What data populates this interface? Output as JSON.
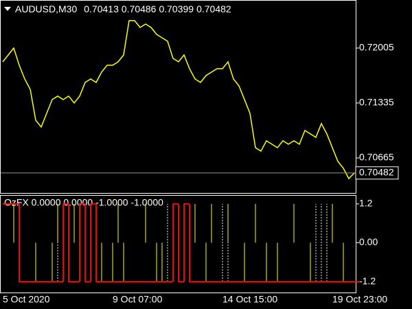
{
  "chart_data": [
    {
      "type": "line",
      "title": "AUDUSD,M30",
      "ohlc": [
        0.70413,
        0.70486,
        0.70399,
        0.70482
      ],
      "color": "#ffff00",
      "values": [
        0.71837,
        0.71921,
        0.72005,
        0.71795,
        0.71628,
        0.71502,
        0.71125,
        0.71042,
        0.71209,
        0.71377,
        0.71419,
        0.71377,
        0.71419,
        0.71335,
        0.71419,
        0.71586,
        0.71628,
        0.71586,
        0.71712,
        0.71795,
        0.71795,
        0.71837,
        0.71921,
        0.7234,
        0.7234,
        0.72256,
        0.72298,
        0.72256,
        0.72172,
        0.7213,
        0.72089,
        0.71879,
        0.71837,
        0.71921,
        0.71754,
        0.71628,
        0.71586,
        0.7167,
        0.71712,
        0.71754,
        0.71754,
        0.71837,
        0.71628,
        0.71544,
        0.71377,
        0.71209,
        0.7079,
        0.70748,
        0.70874,
        0.70832,
        0.7079,
        0.70874,
        0.70832,
        0.70874,
        0.70832,
        0.71,
        0.70958,
        0.70916,
        0.71083,
        0.70958,
        0.7079,
        0.70623,
        0.70539,
        0.70413,
        0.70482
      ],
      "ylim": [
        0.70246,
        0.72591
      ],
      "yticks": [
        0.72005,
        0.71335,
        0.70665
      ]
    },
    {
      "type": "indicator",
      "title": "OzFX 0.0000 0.0000 -1.0000 -1.0000",
      "categories": [
        "5 Oct 2020",
        null,
        null,
        null,
        null,
        null,
        null,
        null,
        null,
        null,
        null,
        null,
        null,
        null,
        null,
        null,
        null,
        null,
        null,
        null,
        "9 Oct 07:00",
        null,
        null,
        null,
        null,
        null,
        null,
        null,
        null,
        null,
        null,
        null,
        null,
        null,
        null,
        null,
        null,
        null,
        null,
        null,
        "14 Oct 15:00",
        null,
        null,
        null,
        null,
        null,
        null,
        null,
        null,
        null,
        null,
        null,
        null,
        null,
        null,
        null,
        null,
        null,
        null,
        null,
        "19 Oct 23:00",
        null,
        null,
        null,
        null
      ],
      "series": [
        {
          "color": "#ff0000",
          "values": [
            1.2,
            1.2,
            1.2,
            -1.2,
            -1.2,
            -1.2,
            -1.2,
            -1.2,
            -1.2,
            -1.2,
            -1.2,
            1.2,
            -1.2,
            -1.2,
            1.2,
            -1.2,
            1.2,
            -1.2,
            -1.2,
            -1.2,
            -1.2,
            -1.2,
            -1.2,
            -1.2,
            -1.2,
            -1.2,
            -1.2,
            -1.2,
            -1.2,
            -1.2,
            -1.2,
            1.2,
            -1.2,
            1.2,
            -1.2,
            -1.2,
            -1.2,
            -1.2,
            -1.2,
            -1.2,
            -1.2,
            -1.2,
            -1.2,
            -1.2,
            -1.2,
            -1.2,
            -1.2,
            -1.2,
            -1.2,
            -1.2,
            -1.2,
            -1.2,
            -1.2,
            -1.2,
            -1.2,
            -1.2,
            -1.2,
            -1.2,
            -1.2,
            -1.2,
            -1.2,
            -1.2,
            -1.2,
            -1.2,
            -1.2
          ]
        },
        {
          "color": "#ffff00",
          "values": [
            null,
            null,
            1.2,
            null,
            null,
            null,
            -1.2,
            null,
            null,
            -1.2,
            1.2,
            null,
            null,
            1.2,
            null,
            null,
            null,
            null,
            -1.2,
            null,
            -1.2,
            1.2,
            -1.2,
            null,
            null,
            null,
            1.2,
            null,
            -1.2,
            -1.2,
            null,
            null,
            null,
            null,
            null,
            1.2,
            null,
            -1.2,
            1.2,
            null,
            null,
            1.2,
            null,
            null,
            -1.2,
            null,
            1.2,
            null,
            -1.2,
            null,
            -1.2,
            null,
            null,
            1.2,
            null,
            null,
            -1.2,
            null,
            null,
            null,
            1.2,
            null,
            -1.2,
            null,
            null
          ]
        },
        {
          "color": "#ffffff",
          "values": [
            null,
            null,
            null,
            null,
            null,
            null,
            null,
            null,
            null,
            null,
            1.2,
            1.2,
            1.2,
            null,
            null,
            null,
            null,
            null,
            null,
            null,
            null,
            null,
            null,
            null,
            null,
            null,
            null,
            null,
            null,
            null,
            1.2,
            1.2,
            null,
            null,
            null,
            null,
            null,
            null,
            null,
            null,
            1.2,
            1.2,
            null,
            null,
            null,
            null,
            null,
            null,
            null,
            null,
            null,
            null,
            null,
            null,
            null,
            null,
            null,
            1.2,
            1.2,
            1.2,
            null,
            null,
            null,
            null,
            null
          ]
        }
      ],
      "ylim": [
        -1.537,
        1.453
      ],
      "yticks": [
        1.2,
        {
          "value": 0,
          "label": "0.00"
        },
        -1.2
      ]
    }
  ]
}
